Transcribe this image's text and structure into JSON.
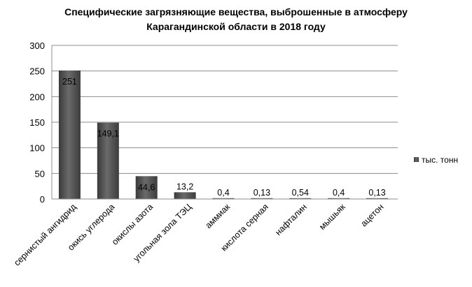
{
  "chart_data": {
    "type": "bar",
    "title_lines": [
      "Специфические загрязняющие вещества, выброшенные в атмосферу",
      "Карагандинской области в 2018 году"
    ],
    "categories": [
      "сернистый ангидрид",
      "окись углерода",
      "окислы азота",
      "угольная зола ТЭЦ",
      "аммиак",
      "кислота серная",
      "нафталин",
      "мышьяк",
      "ацетон"
    ],
    "series": [
      {
        "name": "тыс. тонн",
        "values": [
          251,
          149.1,
          44.6,
          13.2,
          0.4,
          0.13,
          0.54,
          0.4,
          0.13
        ],
        "data_labels": [
          "251",
          "149,1",
          "44,6",
          "13,2",
          "0,4",
          "0,13",
          "0,54",
          "0,4",
          "0,13"
        ]
      }
    ],
    "ylim": [
      0,
      300
    ],
    "yticks": [
      "0",
      "50",
      "100",
      "150",
      "200",
      "250",
      "300"
    ],
    "grid": true,
    "legend_position": "right",
    "bar_color": "#555555",
    "xlabel": "",
    "ylabel": ""
  }
}
